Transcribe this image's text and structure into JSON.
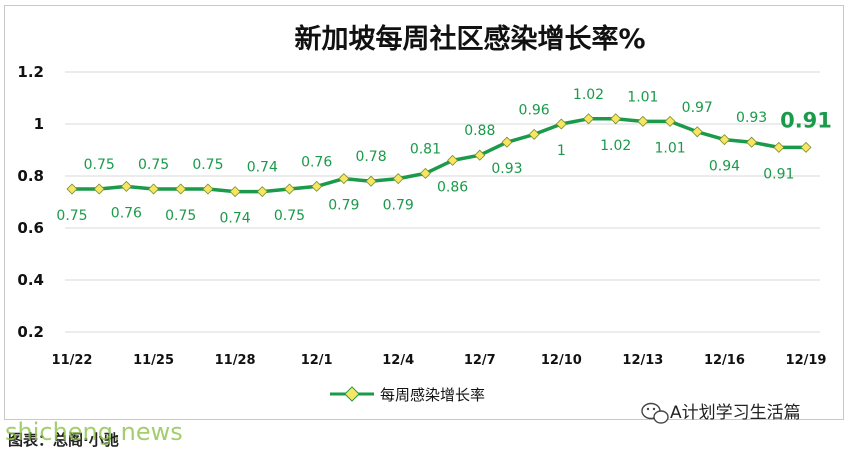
{
  "chart_data": {
    "type": "line",
    "title": "新加坡每周社区感染增长率%",
    "xlabel": "",
    "ylabel": "",
    "ylim": [
      0.2,
      1.2
    ],
    "yticks": [
      "0.2",
      "0.4",
      "0.6",
      "0.8",
      "1",
      "1.2"
    ],
    "ytick_values": [
      0.2,
      0.4,
      0.6,
      0.8,
      1.0,
      1.2
    ],
    "grid": true,
    "legend_position": "bottom-center",
    "x": [
      "11/22",
      "11/23",
      "11/24",
      "11/25",
      "11/26",
      "11/27",
      "11/28",
      "11/29",
      "11/30",
      "12/1",
      "12/2",
      "12/3",
      "12/4",
      "12/5",
      "12/6",
      "12/7",
      "12/8",
      "12/9",
      "12/10",
      "12/11",
      "12/12",
      "12/13",
      "12/14",
      "12/15",
      "12/16",
      "12/17",
      "12/18",
      "12/19"
    ],
    "x_tick_labels": [
      "11/22",
      "",
      "",
      "11/25",
      "",
      "",
      "11/28",
      "",
      "",
      "12/1",
      "",
      "",
      "12/4",
      "",
      "",
      "12/7",
      "",
      "",
      "12/10",
      "",
      "",
      "12/13",
      "",
      "",
      "12/16",
      "",
      "",
      "12/19"
    ],
    "series": [
      {
        "name": "每周感染增长率",
        "color": "#1a9a4a",
        "marker_color": "#f5e663",
        "values": [
          0.75,
          0.75,
          0.76,
          0.75,
          0.75,
          0.75,
          0.74,
          0.74,
          0.75,
          0.76,
          0.79,
          0.78,
          0.79,
          0.81,
          0.86,
          0.88,
          0.93,
          0.96,
          1.0,
          1.02,
          1.02,
          1.01,
          1.01,
          0.97,
          0.94,
          0.93,
          0.91,
          0.91
        ],
        "labels": [
          "0.75",
          "0.75",
          "0.76",
          "0.75",
          "0.75",
          "0.75",
          "0.74",
          "0.74",
          "0.75",
          "0.76",
          "0.79",
          "0.78",
          "0.79",
          "0.81",
          "0.86",
          "0.88",
          "0.93",
          "0.96",
          "1",
          "1.02",
          "1.02",
          "1.01",
          "1.01",
          "0.97",
          "0.94",
          "0.93",
          "0.91",
          "0.91"
        ],
        "label_positions": [
          "below",
          "above",
          "below",
          "above",
          "below",
          "above",
          "below",
          "above",
          "below",
          "above",
          "below",
          "above",
          "below",
          "above",
          "below",
          "above",
          "below",
          "above",
          "below",
          "above",
          "below",
          "above",
          "below",
          "above",
          "below",
          "above",
          "below",
          "above"
        ]
      }
    ]
  },
  "watermark": {
    "account": "A计划学习生活篇",
    "icon": "wechat-icon"
  },
  "footer": {
    "caption": "图表：总阁·小驰",
    "site": "shicheng.news"
  }
}
